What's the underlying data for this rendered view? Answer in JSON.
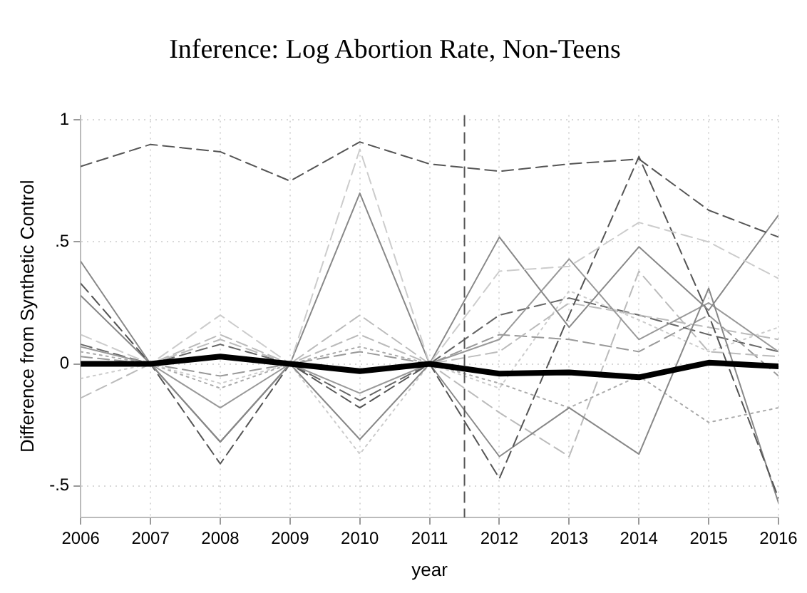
{
  "chart_data": {
    "type": "line",
    "title": "Inference: Log Abortion Rate, Non-Teens",
    "xlabel": "year",
    "ylabel": "Difference from Synthetic Control",
    "x": [
      2006,
      2007,
      2008,
      2009,
      2010,
      2011,
      2012,
      2013,
      2014,
      2015,
      2016
    ],
    "xlim": [
      2006,
      2016
    ],
    "xticks": [
      2006,
      2007,
      2008,
      2009,
      2010,
      2011,
      2012,
      2013,
      2014,
      2015,
      2016
    ],
    "ylim": [
      -0.63,
      1.02
    ],
    "yticks": [
      {
        "value": -0.5,
        "label": "-.5"
      },
      0,
      {
        "value": 0.5,
        "label": ".5"
      },
      1
    ],
    "grid": true,
    "legend": false,
    "marker": "none",
    "ref_lines": [
      {
        "axis": "x",
        "value": 2011.5,
        "color": "#555555",
        "line_style": "dashed"
      }
    ],
    "series": [
      {
        "color": "#555555",
        "line_style": "dashed",
        "values": [
          0.81,
          0.9,
          0.87,
          0.75,
          0.91,
          0.82,
          0.79,
          0.82,
          0.84,
          0.63,
          0.52
        ]
      },
      {
        "color": "#cccccc",
        "line_style": "dashed",
        "values": [
          0.12,
          0,
          0.2,
          0,
          0.88,
          0,
          0.38,
          0.4,
          0.58,
          0.5,
          0.35
        ]
      },
      {
        "color": "#888888",
        "line_style": "solid",
        "values": [
          0.42,
          0,
          -0.32,
          0,
          0.7,
          0,
          0.52,
          0.15,
          0.48,
          0.22,
          0.61
        ]
      },
      {
        "color": "#555555",
        "line_style": "dashed",
        "values": [
          0.33,
          0,
          -0.41,
          0,
          -0.18,
          0,
          -0.47,
          0.2,
          0.85,
          0.2,
          -0.55
        ]
      },
      {
        "color": "#888888",
        "line_style": "solid",
        "values": [
          0.28,
          0,
          -0.32,
          0,
          -0.31,
          0,
          -0.38,
          -0.18,
          -0.37,
          0.31,
          -0.57
        ]
      },
      {
        "color": "#999999",
        "line_style": "solid",
        "values": [
          0.07,
          0,
          -0.18,
          0,
          -0.12,
          0,
          0.1,
          0.43,
          0.1,
          0.25,
          0.05
        ]
      },
      {
        "color": "#bbbbbb",
        "line_style": "dashed",
        "values": [
          0,
          0,
          0.1,
          0,
          0.2,
          0,
          0.05,
          0.25,
          0.2,
          0.15,
          0.1
        ]
      },
      {
        "color": "#cccccc",
        "line_style": "dotted",
        "values": [
          -0.06,
          0,
          -0.08,
          0,
          -0.37,
          0,
          -0.1,
          0.3,
          0.18,
          0.05,
          0.15
        ]
      },
      {
        "color": "#bbbbbb",
        "line_style": "dashed",
        "values": [
          -0.14,
          0,
          0.12,
          0,
          0.12,
          0,
          -0.2,
          -0.38,
          0.38,
          0.05,
          0.03
        ]
      },
      {
        "color": "#aaaaaa",
        "line_style": "dotted",
        "values": [
          0.05,
          0,
          -0.1,
          0,
          0.07,
          0,
          -0.08,
          -0.18,
          -0.05,
          -0.24,
          -0.18
        ]
      },
      {
        "color": "#666666",
        "line_style": "dashed",
        "values": [
          0.08,
          0,
          0.08,
          0,
          -0.15,
          0,
          0.2,
          0.27,
          0.2,
          0.12,
          0.05
        ]
      },
      {
        "color": "#999999",
        "line_style": "dashed",
        "values": [
          0.03,
          0,
          -0.05,
          0,
          0.05,
          0,
          0.12,
          0.1,
          0.05,
          0.2,
          -0.05
        ]
      },
      {
        "color": "#000000",
        "line_style": "solid",
        "values": [
          0,
          0,
          0.03,
          0,
          -0.03,
          0,
          -0.04,
          -0.035,
          -0.055,
          0.005,
          -0.01
        ]
      }
    ]
  }
}
